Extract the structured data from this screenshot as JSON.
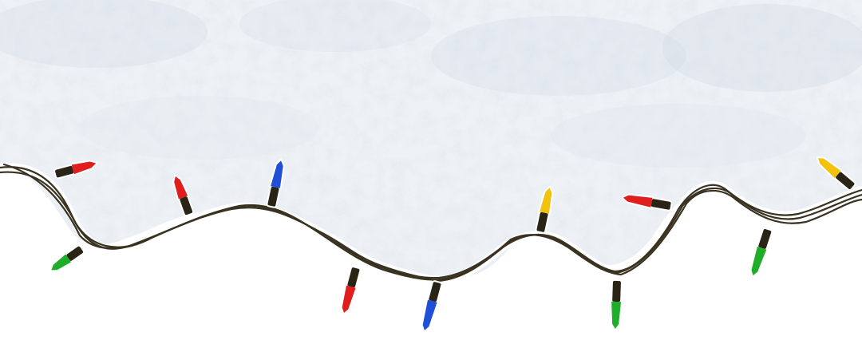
{
  "scene": {
    "description_visible_text": "",
    "colors": {
      "background": "#ffffff",
      "snow": "#eef2f6",
      "snow_shadow": "#c9d3dd",
      "wire": "#3a3220",
      "bulb_red": "#e01e1e",
      "bulb_green": "#1fae2a",
      "bulb_blue": "#1f4fd6",
      "bulb_yellow": "#f2c20f",
      "bulb_base": "#2a2416"
    },
    "bulbs": [
      {
        "name": "bulb-red-1",
        "color": "red"
      },
      {
        "name": "bulb-green-1",
        "color": "green"
      },
      {
        "name": "bulb-red-2",
        "color": "red"
      },
      {
        "name": "bulb-blue-1",
        "color": "blue"
      },
      {
        "name": "bulb-red-3",
        "color": "red"
      },
      {
        "name": "bulb-blue-2",
        "color": "blue"
      },
      {
        "name": "bulb-yellow-1",
        "color": "yellow"
      },
      {
        "name": "bulb-green-2",
        "color": "green"
      },
      {
        "name": "bulb-red-4",
        "color": "red"
      },
      {
        "name": "bulb-green-3",
        "color": "green"
      },
      {
        "name": "bulb-yellow-2",
        "color": "yellow"
      }
    ]
  }
}
